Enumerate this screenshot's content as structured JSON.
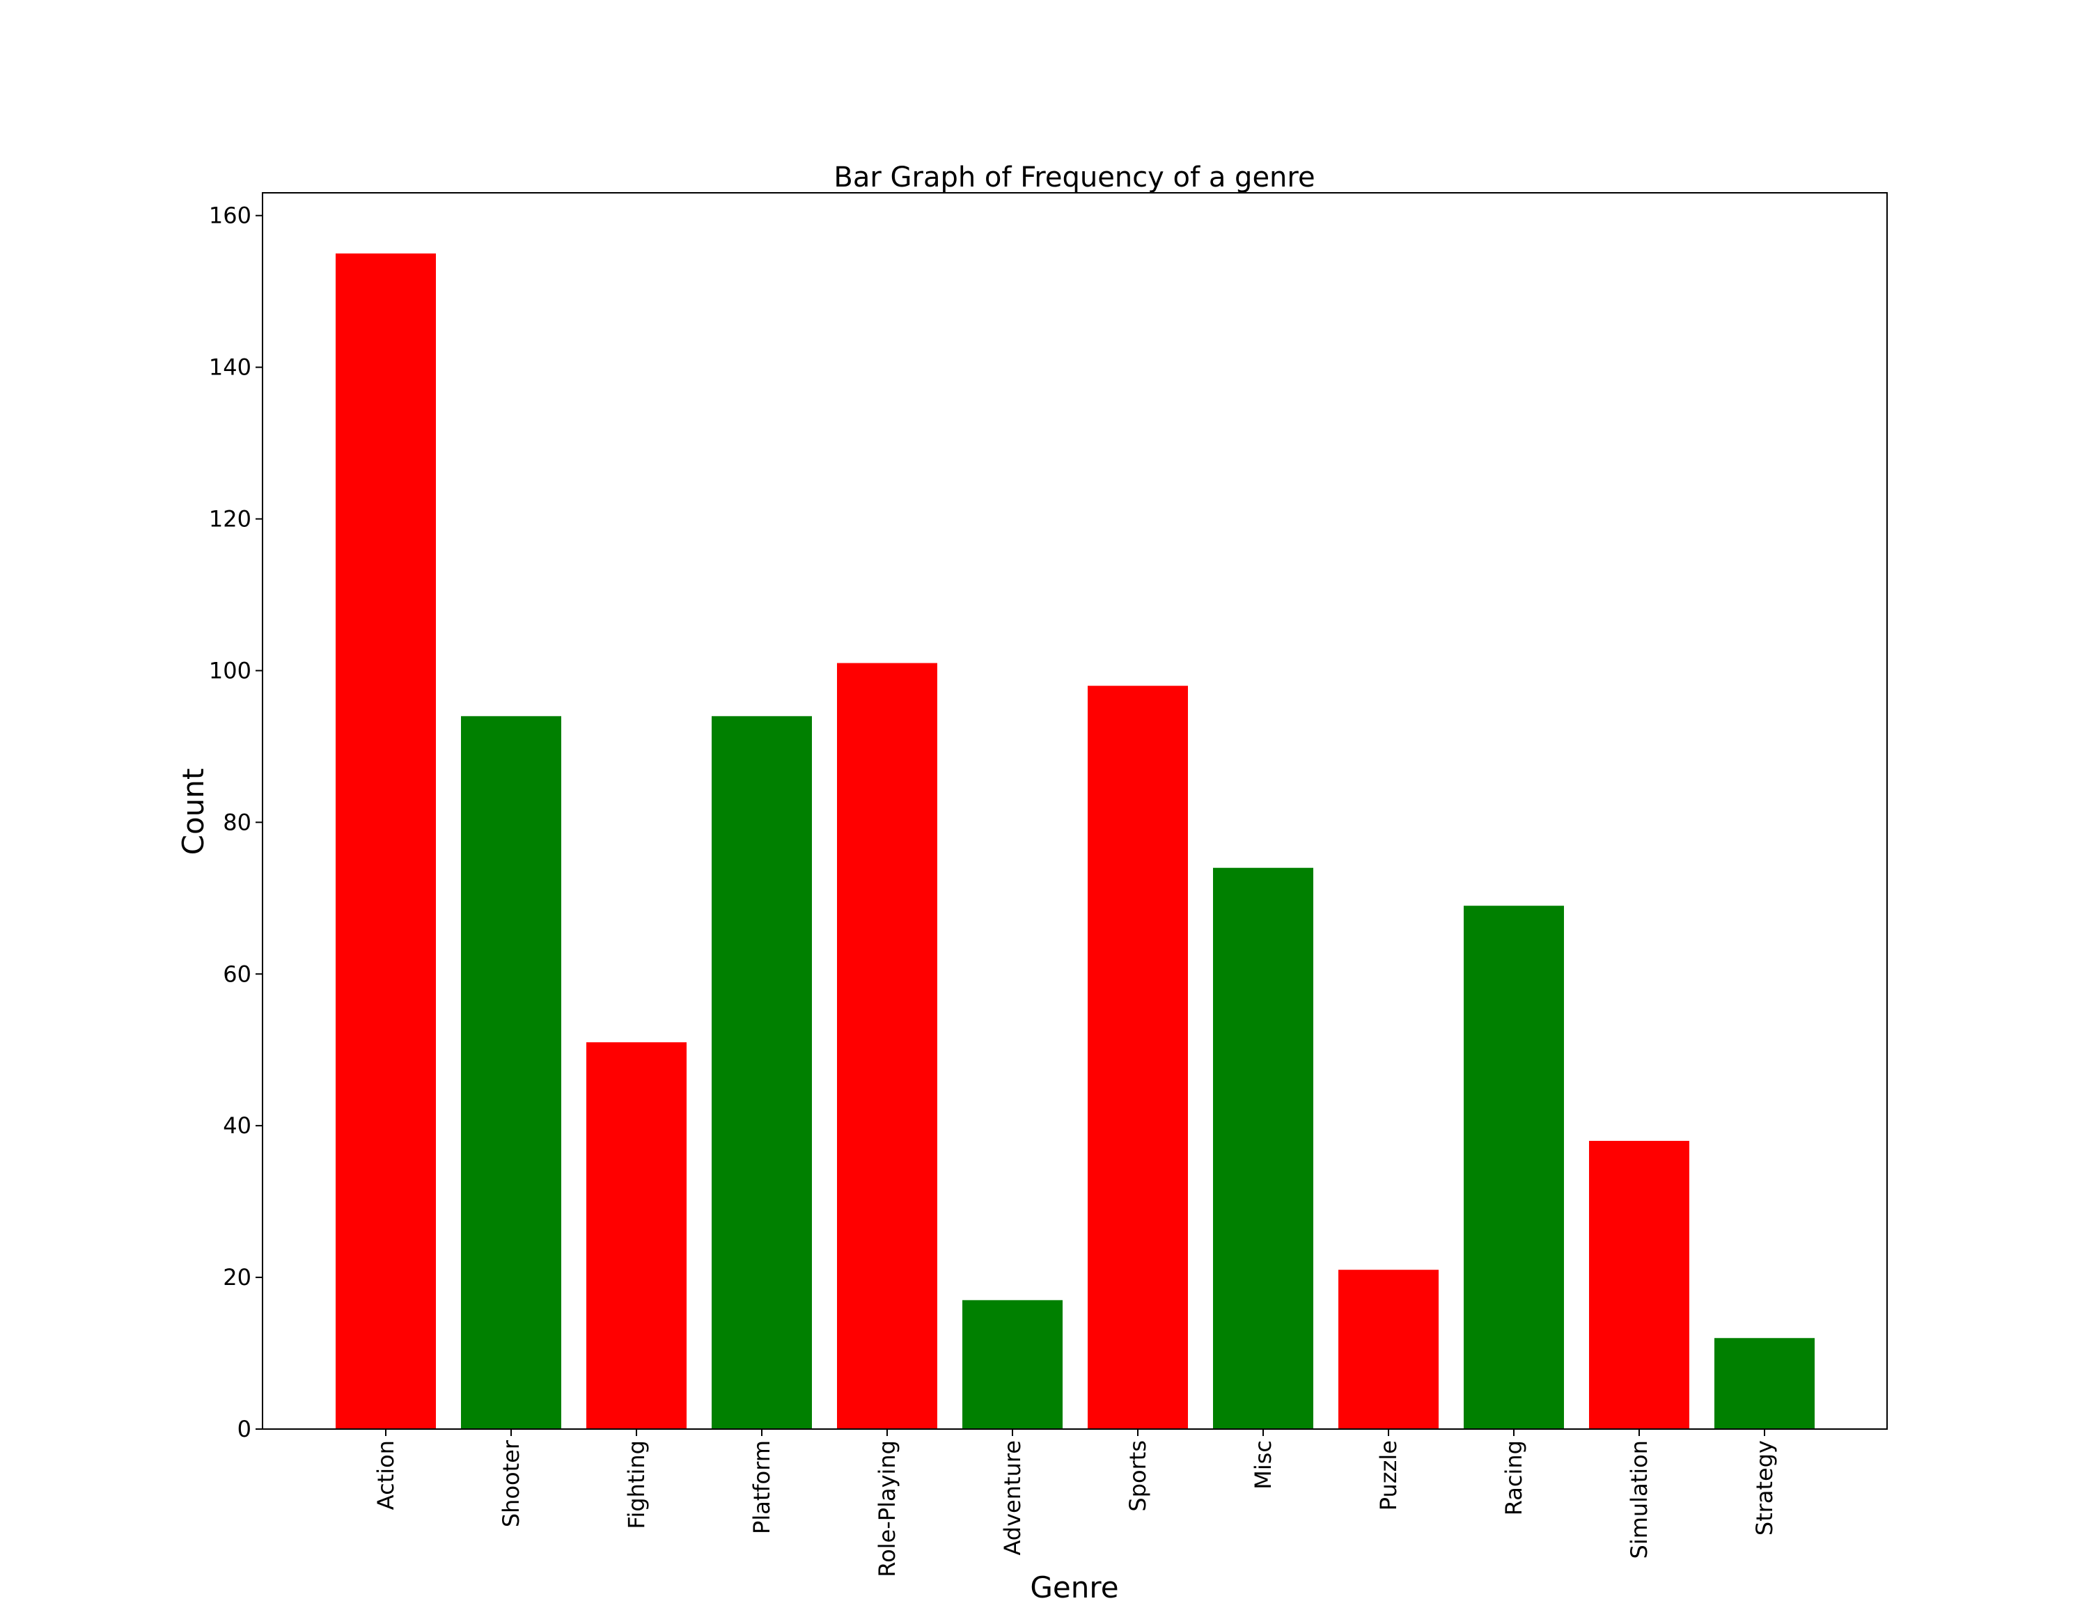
{
  "chart_data": {
    "type": "bar",
    "title": "Bar Graph of Frequency of a genre",
    "xlabel": "Genre",
    "ylabel": "Count",
    "categories": [
      "Action",
      "Shooter",
      "Fighting",
      "Platform",
      "Role-Playing",
      "Adventure",
      "Sports",
      "Misc",
      "Puzzle",
      "Racing",
      "Simulation",
      "Strategy"
    ],
    "values": [
      155,
      94,
      51,
      94,
      101,
      17,
      98,
      74,
      21,
      69,
      38,
      12
    ],
    "bar_colors": [
      "#ff0000",
      "#008000",
      "#ff0000",
      "#008000",
      "#ff0000",
      "#008000",
      "#ff0000",
      "#008000",
      "#ff0000",
      "#008000",
      "#ff0000",
      "#008000"
    ],
    "ylim": [
      0,
      163
    ],
    "yticks": [
      0,
      20,
      40,
      60,
      80,
      100,
      120,
      140,
      160
    ],
    "grid": false,
    "legend": "none"
  }
}
